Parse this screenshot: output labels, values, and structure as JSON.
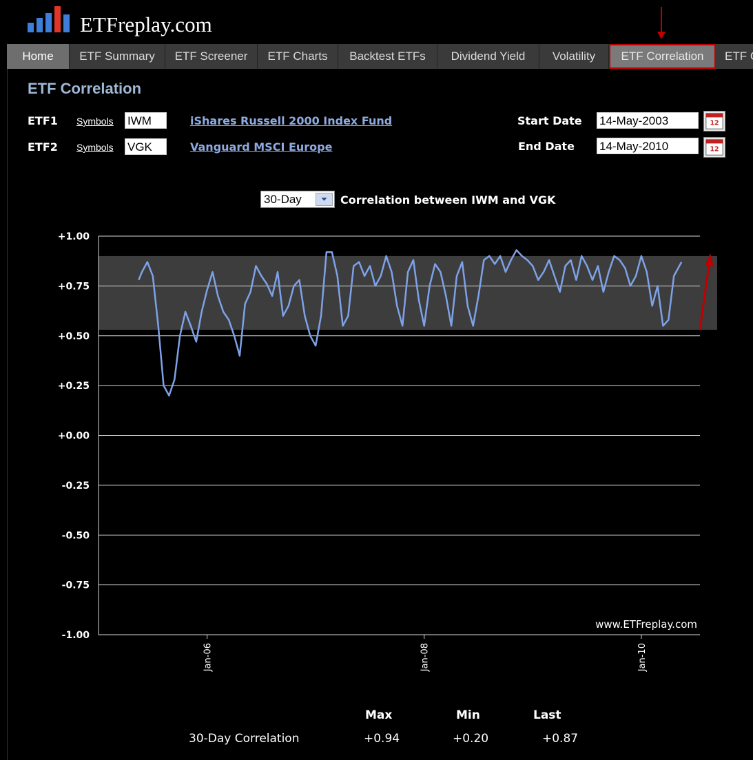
{
  "site": {
    "name": "ETFreplay.com"
  },
  "nav": [
    {
      "label": "Home"
    },
    {
      "label": "ETF Summary"
    },
    {
      "label": "ETF Screener"
    },
    {
      "label": "ETF Charts"
    },
    {
      "label": "Backtest ETFs"
    },
    {
      "label": "Dividend Yield"
    },
    {
      "label": "Volatility"
    },
    {
      "label": "ETF Correlation"
    },
    {
      "label": "ETF C"
    }
  ],
  "page": {
    "title": "ETF Correlation"
  },
  "etf1": {
    "label": "ETF1",
    "symbols_link": "Symbols",
    "symbol": "IWM",
    "fund_name": "iShares Russell 2000 Index Fund"
  },
  "etf2": {
    "label": "ETF2",
    "symbols_link": "Symbols",
    "symbol": "VGK",
    "fund_name": "Vanguard MSCI Europe"
  },
  "dates": {
    "start_label": "Start Date",
    "start_value": "14-May-2003",
    "end_label": "End Date",
    "end_value": "14-May-2010"
  },
  "period_select": {
    "value": "30-Day"
  },
  "chart_title": "Correlation between IWM and VGK",
  "chart_data": {
    "type": "line",
    "title": "Correlation between IWM and VGK",
    "ylim": [
      -1,
      1
    ],
    "yticks": [
      "+1.00",
      "+0.75",
      "+0.50",
      "+0.25",
      "+0.00",
      "-0.25",
      "-0.50",
      "-0.75",
      "-1.00"
    ],
    "xticks": [
      "Jan-06",
      "Jan-08",
      "Jan-10"
    ],
    "grid": true,
    "watermark": "www.ETFreplay.com",
    "highlight_band": [
      0.53,
      0.9
    ],
    "series": [
      {
        "x": [
          2005.37,
          2005.4,
          2005.45,
          2005.5,
          2005.55,
          2005.6,
          2005.65,
          2005.7,
          2005.75,
          2005.8,
          2005.85,
          2005.9,
          2005.95,
          2006.0,
          2006.05,
          2006.1,
          2006.15,
          2006.2,
          2006.25,
          2006.3,
          2006.35,
          2006.4,
          2006.45,
          2006.5,
          2006.55,
          2006.6,
          2006.65,
          2006.7,
          2006.75,
          2006.8,
          2006.85,
          2006.9,
          2006.95,
          2007.0,
          2007.05,
          2007.1,
          2007.15,
          2007.2,
          2007.25,
          2007.3,
          2007.35,
          2007.4,
          2007.45,
          2007.5,
          2007.55,
          2007.6,
          2007.65,
          2007.7,
          2007.75,
          2007.8,
          2007.85,
          2007.9,
          2007.95,
          2008.0,
          2008.05,
          2008.1,
          2008.15,
          2008.2,
          2008.25,
          2008.3,
          2008.35,
          2008.4,
          2008.45,
          2008.5,
          2008.55,
          2008.6,
          2008.65,
          2008.7,
          2008.75,
          2008.8,
          2008.85,
          2008.9,
          2008.95,
          2009.0,
          2009.05,
          2009.1,
          2009.15,
          2009.2,
          2009.25,
          2009.3,
          2009.35,
          2009.4,
          2009.45,
          2009.5,
          2009.55,
          2009.6,
          2009.65,
          2009.7,
          2009.75,
          2009.8,
          2009.85,
          2009.9,
          2009.95,
          2010.0,
          2010.05,
          2010.1,
          2010.15,
          2010.2,
          2010.25,
          2010.3,
          2010.37
        ],
        "y": [
          0.78,
          0.82,
          0.87,
          0.8,
          0.55,
          0.25,
          0.2,
          0.28,
          0.5,
          0.62,
          0.55,
          0.47,
          0.62,
          0.73,
          0.82,
          0.7,
          0.62,
          0.58,
          0.5,
          0.4,
          0.66,
          0.72,
          0.85,
          0.8,
          0.76,
          0.7,
          0.82,
          0.6,
          0.65,
          0.75,
          0.78,
          0.6,
          0.5,
          0.45,
          0.6,
          0.92,
          0.92,
          0.8,
          0.55,
          0.6,
          0.85,
          0.87,
          0.8,
          0.85,
          0.75,
          0.8,
          0.9,
          0.82,
          0.65,
          0.55,
          0.82,
          0.88,
          0.68,
          0.55,
          0.75,
          0.86,
          0.82,
          0.7,
          0.55,
          0.8,
          0.87,
          0.65,
          0.55,
          0.7,
          0.88,
          0.9,
          0.86,
          0.9,
          0.82,
          0.88,
          0.93,
          0.9,
          0.88,
          0.85,
          0.78,
          0.82,
          0.88,
          0.8,
          0.72,
          0.85,
          0.88,
          0.78,
          0.9,
          0.85,
          0.78,
          0.85,
          0.72,
          0.82,
          0.9,
          0.88,
          0.84,
          0.75,
          0.8,
          0.9,
          0.82,
          0.65,
          0.75,
          0.55,
          0.58,
          0.8,
          0.87
        ]
      }
    ]
  },
  "stats": {
    "headers": [
      "Max",
      "Min",
      "Last"
    ],
    "row_label": "30-Day Correlation",
    "values": [
      "+0.94",
      "+0.20",
      "+0.87"
    ]
  },
  "colors": {
    "line": "#7ea2e8",
    "band": "#3d3d3d",
    "accent_red": "#c00000"
  }
}
